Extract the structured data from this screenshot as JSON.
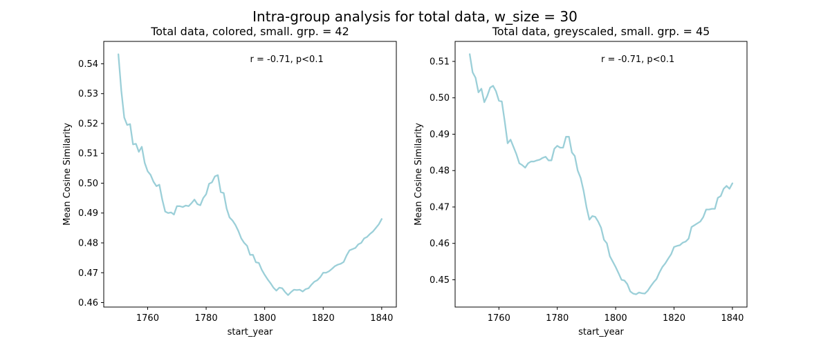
{
  "figure": {
    "suptitle": "Intra-group analysis for total data, w_size = 30"
  },
  "chart_data": [
    {
      "type": "line",
      "title": "Total data, colored, small. grp. = 42",
      "xlabel": "start_year",
      "ylabel": "Mean Cosine Similarity",
      "annotation": "r = -0.71, p<0.1",
      "line_color": "#9bcfd8",
      "xlim": [
        1745,
        1845
      ],
      "ylim": [
        0.4585,
        0.5475
      ],
      "xticks": [
        1760,
        1780,
        1800,
        1820,
        1840
      ],
      "xtick_labels": [
        "1760",
        "1780",
        "1800",
        "1820",
        "1840"
      ],
      "yticks": [
        0.46,
        0.47,
        0.48,
        0.49,
        0.5,
        0.51,
        0.52,
        0.53,
        0.54
      ],
      "ytick_labels": [
        "0.46",
        "0.47",
        "0.48",
        "0.49",
        "0.50",
        "0.51",
        "0.52",
        "0.53",
        "0.54"
      ],
      "grid": false,
      "x": [
        1750,
        1751,
        1752,
        1753,
        1754,
        1755,
        1756,
        1757,
        1758,
        1759,
        1760,
        1761,
        1762,
        1763,
        1764,
        1765,
        1766,
        1767,
        1768,
        1769,
        1770,
        1771,
        1772,
        1773,
        1774,
        1775,
        1776,
        1777,
        1778,
        1779,
        1780,
        1781,
        1782,
        1783,
        1784,
        1785,
        1786,
        1787,
        1788,
        1789,
        1790,
        1791,
        1792,
        1793,
        1794,
        1795,
        1796,
        1797,
        1798,
        1799,
        1800,
        1801,
        1802,
        1803,
        1804,
        1805,
        1806,
        1807,
        1808,
        1809,
        1810,
        1811,
        1812,
        1813,
        1814,
        1815,
        1816,
        1817,
        1818,
        1819,
        1820,
        1821,
        1822,
        1823,
        1824,
        1825,
        1826,
        1827,
        1828,
        1829,
        1830,
        1831,
        1832,
        1833,
        1834,
        1835,
        1836,
        1837,
        1838,
        1839,
        1840
      ],
      "series": [
        {
          "values": [
            0.5432,
            0.531,
            0.522,
            0.5195,
            0.5198,
            0.513,
            0.5132,
            0.5105,
            0.5122,
            0.5068,
            0.504,
            0.5028,
            0.5005,
            0.499,
            0.4995,
            0.4945,
            0.4905,
            0.49,
            0.4902,
            0.4895,
            0.4923,
            0.4923,
            0.492,
            0.4925,
            0.4923,
            0.4933,
            0.4945,
            0.493,
            0.4926,
            0.495,
            0.4963,
            0.4998,
            0.5003,
            0.5023,
            0.5027,
            0.497,
            0.4967,
            0.4915,
            0.4885,
            0.4875,
            0.486,
            0.484,
            0.4815,
            0.48,
            0.479,
            0.476,
            0.476,
            0.4735,
            0.4733,
            0.471,
            0.4693,
            0.4678,
            0.4665,
            0.465,
            0.464,
            0.465,
            0.4648,
            0.4635,
            0.4625,
            0.4635,
            0.4643,
            0.4642,
            0.4643,
            0.4637,
            0.4645,
            0.4648,
            0.466,
            0.467,
            0.4675,
            0.4685,
            0.47,
            0.47,
            0.4705,
            0.4713,
            0.4722,
            0.4727,
            0.473,
            0.4736,
            0.4758,
            0.4775,
            0.4779,
            0.4783,
            0.4795,
            0.48,
            0.4815,
            0.482,
            0.483,
            0.4838,
            0.485,
            0.4862,
            0.488
          ]
        }
      ]
    },
    {
      "type": "line",
      "title": "Total data, greyscaled, small. grp. = 45",
      "xlabel": "start_year",
      "ylabel": "Mean Cosine Similarity",
      "annotation": "r = -0.71, p<0.1",
      "line_color": "#9bcfd8",
      "xlim": [
        1745,
        1845
      ],
      "ylim": [
        0.4425,
        0.5155
      ],
      "xticks": [
        1760,
        1780,
        1800,
        1820,
        1840
      ],
      "xtick_labels": [
        "1760",
        "1780",
        "1800",
        "1820",
        "1840"
      ],
      "yticks": [
        0.45,
        0.46,
        0.47,
        0.48,
        0.49,
        0.5,
        0.51
      ],
      "ytick_labels": [
        "0.45",
        "0.46",
        "0.47",
        "0.48",
        "0.49",
        "0.50",
        "0.51"
      ],
      "grid": false,
      "x": [
        1750,
        1751,
        1752,
        1753,
        1754,
        1755,
        1756,
        1757,
        1758,
        1759,
        1760,
        1761,
        1762,
        1763,
        1764,
        1765,
        1766,
        1767,
        1768,
        1769,
        1770,
        1771,
        1772,
        1773,
        1774,
        1775,
        1776,
        1777,
        1778,
        1779,
        1780,
        1781,
        1782,
        1783,
        1784,
        1785,
        1786,
        1787,
        1788,
        1789,
        1790,
        1791,
        1792,
        1793,
        1794,
        1795,
        1796,
        1797,
        1798,
        1799,
        1800,
        1801,
        1802,
        1803,
        1804,
        1805,
        1806,
        1807,
        1808,
        1809,
        1810,
        1811,
        1812,
        1813,
        1814,
        1815,
        1816,
        1817,
        1818,
        1819,
        1820,
        1821,
        1822,
        1823,
        1824,
        1825,
        1826,
        1827,
        1828,
        1829,
        1830,
        1831,
        1832,
        1833,
        1834,
        1835,
        1836,
        1837,
        1838,
        1839,
        1840
      ],
      "series": [
        {
          "values": [
            0.512,
            0.507,
            0.5055,
            0.5015,
            0.5025,
            0.4988,
            0.5005,
            0.5028,
            0.5033,
            0.5018,
            0.4992,
            0.499,
            0.4935,
            0.4875,
            0.4885,
            0.4865,
            0.4845,
            0.482,
            0.4815,
            0.4808,
            0.482,
            0.4825,
            0.4825,
            0.4828,
            0.483,
            0.4835,
            0.4838,
            0.4828,
            0.4828,
            0.486,
            0.4868,
            0.4863,
            0.4863,
            0.4893,
            0.4893,
            0.485,
            0.484,
            0.48,
            0.478,
            0.4745,
            0.47,
            0.4665,
            0.4675,
            0.4673,
            0.466,
            0.4643,
            0.461,
            0.46,
            0.4565,
            0.455,
            0.4535,
            0.4518,
            0.45,
            0.4498,
            0.4488,
            0.4468,
            0.4462,
            0.446,
            0.4465,
            0.4463,
            0.4462,
            0.447,
            0.4482,
            0.4493,
            0.4502,
            0.452,
            0.4535,
            0.4545,
            0.4558,
            0.457,
            0.459,
            0.4593,
            0.4595,
            0.4602,
            0.4605,
            0.4613,
            0.4645,
            0.465,
            0.4655,
            0.466,
            0.4672,
            0.4693,
            0.4693,
            0.4695,
            0.4695,
            0.4725,
            0.473,
            0.475,
            0.4758,
            0.475,
            0.4765
          ]
        }
      ]
    }
  ]
}
